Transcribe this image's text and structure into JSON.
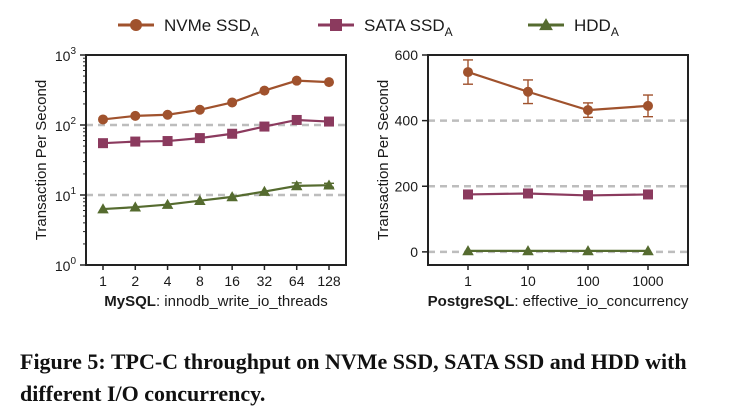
{
  "legend": [
    {
      "base": "NVMe SSD",
      "sub": "A",
      "color": "#a0522d",
      "marker": "circle"
    },
    {
      "base": "SATA SSD",
      "sub": "A",
      "color": "#8b3a5e",
      "marker": "square"
    },
    {
      "base": "HDD",
      "sub": "A",
      "color": "#556b2f",
      "marker": "triangle"
    }
  ],
  "caption": "Figure 5: TPC-C throughput on NVMe SSD, SATA SSD and HDD with different I/O concurrency.",
  "chart_data": [
    {
      "type": "line",
      "ylabel": "Transaction Per Second",
      "xlabel_bold": "MySQL",
      "xlabel_rest": ": innodb_write_io_threads",
      "categories": [
        "1",
        "2",
        "4",
        "8",
        "16",
        "32",
        "64",
        "128"
      ],
      "y_scale": "log",
      "ylim": [
        1,
        1000
      ],
      "y_ticks": [
        {
          "value": 1,
          "base": "10",
          "exp": "0"
        },
        {
          "value": 10,
          "base": "10",
          "exp": "1"
        },
        {
          "value": 100,
          "base": "10",
          "exp": "2"
        },
        {
          "value": 1000,
          "base": "10",
          "exp": "3"
        }
      ],
      "grid_lines": [
        10,
        100
      ],
      "series": [
        {
          "name": "NVMe SSD_A",
          "values": [
            120,
            135,
            140,
            165,
            210,
            310,
            430,
            410
          ],
          "errors": [
            0,
            0,
            0,
            0,
            0,
            0,
            0,
            0
          ]
        },
        {
          "name": "SATA SSD_A",
          "values": [
            55,
            58,
            59,
            65,
            75,
            95,
            118,
            112
          ],
          "errors": [
            0,
            0,
            0,
            0,
            0,
            0,
            0,
            0
          ]
        },
        {
          "name": "HDD_A",
          "values": [
            6.3,
            6.7,
            7.3,
            8.3,
            9.4,
            11.2,
            13.5,
            13.8
          ],
          "errors": [
            0,
            0,
            0,
            0,
            0,
            0,
            1.4,
            0.9
          ]
        }
      ]
    },
    {
      "type": "line",
      "ylabel": "Transaction Per Second",
      "xlabel_bold": "PostgreSQL",
      "xlabel_rest": ": effective_io_concurrency",
      "categories": [
        "1",
        "10",
        "100",
        "1000"
      ],
      "y_scale": "linear",
      "ylim": [
        -40,
        600
      ],
      "y_ticks": [
        {
          "value": 0,
          "label": "0"
        },
        {
          "value": 200,
          "label": "200"
        },
        {
          "value": 400,
          "label": "400"
        },
        {
          "value": 600,
          "label": "600"
        }
      ],
      "grid_lines": [
        0,
        200,
        400
      ],
      "series": [
        {
          "name": "NVMe SSD_A",
          "values": [
            548,
            488,
            432,
            445
          ],
          "errors": [
            37,
            36,
            22,
            33
          ]
        },
        {
          "name": "SATA SSD_A",
          "values": [
            175,
            178,
            172,
            175
          ],
          "errors": [
            9,
            12,
            14,
            9
          ]
        },
        {
          "name": "HDD_A",
          "values": [
            3,
            3,
            3,
            3
          ],
          "errors": [
            0,
            0,
            0,
            0
          ]
        }
      ]
    }
  ]
}
